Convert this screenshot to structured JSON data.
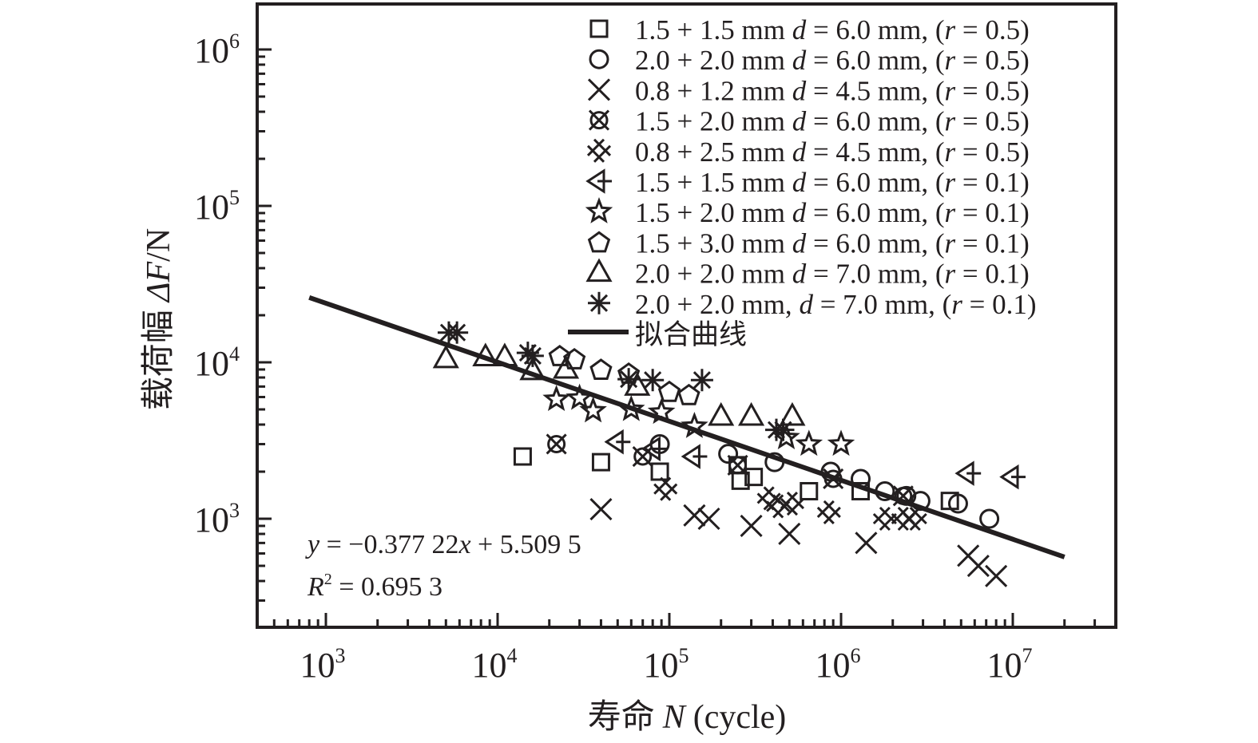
{
  "chart_data": {
    "type": "scatter",
    "title": "",
    "xlabel": "寿命 N (cycle)",
    "xlabel_parts": {
      "cn": "寿命",
      "var": "N",
      "unit": "(cycle)"
    },
    "ylabel": "载荷幅 ΔF/N",
    "ylabel_parts": {
      "cn": "载荷幅",
      "var": "ΔF",
      "unit": "/N"
    },
    "xscale": "log",
    "yscale": "log",
    "xlim": [
      400,
      40000000
    ],
    "ylim": [
      200,
      2000000
    ],
    "x_ticks": [
      {
        "base": "10",
        "exp": "3",
        "value": 1000
      },
      {
        "base": "10",
        "exp": "4",
        "value": 10000
      },
      {
        "base": "10",
        "exp": "5",
        "value": 100000
      },
      {
        "base": "10",
        "exp": "6",
        "value": 1000000
      },
      {
        "base": "10",
        "exp": "7",
        "value": 10000000
      }
    ],
    "y_ticks": [
      {
        "base": "10",
        "exp": "3",
        "value": 1000
      },
      {
        "base": "10",
        "exp": "4",
        "value": 10000
      },
      {
        "base": "10",
        "exp": "5",
        "value": 100000
      },
      {
        "base": "10",
        "exp": "6",
        "value": 1000000
      }
    ],
    "grid": false,
    "legend_position": "top-right",
    "series": [
      {
        "name": "1.5 + 1.5 mm d = 6.0 mm, (r = 0.5)",
        "label": {
          "a": "1.5 + 1.5 mm ",
          "d": "d",
          "b": " = 6.0 mm, (",
          "r": "r",
          "c": " = 0.5)"
        },
        "marker": "square",
        "points": [
          [
            14000,
            2500
          ],
          [
            40000,
            2300
          ],
          [
            88000,
            2000
          ],
          [
            260000,
            1750
          ],
          [
            310000,
            1850
          ],
          [
            250000,
            2200
          ],
          [
            650000,
            1500
          ],
          [
            1300000,
            1500
          ],
          [
            4300000,
            1300
          ]
        ]
      },
      {
        "name": "2.0 + 2.0 mm d = 6.0 mm, (r = 0.5)",
        "label": {
          "a": "2.0 + 2.0 mm ",
          "d": "d",
          "b": " = 6.0 mm, (",
          "r": "r",
          "c": " = 0.5)"
        },
        "marker": "circle",
        "points": [
          [
            88000,
            3000
          ],
          [
            220000,
            2600
          ],
          [
            410000,
            2300
          ],
          [
            870000,
            2000
          ],
          [
            1300000,
            1800
          ],
          [
            1800000,
            1500
          ],
          [
            2400000,
            1400
          ],
          [
            2900000,
            1300
          ],
          [
            4800000,
            1250
          ],
          [
            7300000,
            1000
          ]
        ]
      },
      {
        "name": "0.8 + 1.2 mm d = 4.5 mm, (r = 0.5)",
        "label": {
          "a": "0.8 + 1.2 mm ",
          "d": "d",
          "b": " = 4.5 mm, (",
          "r": "r",
          "c": " = 0.5)"
        },
        "marker": "x",
        "points": [
          [
            40000,
            1150
          ],
          [
            140000,
            1050
          ],
          [
            170000,
            1000
          ],
          [
            300000,
            900
          ],
          [
            500000,
            800
          ],
          [
            1400000,
            700
          ],
          [
            5500000,
            580
          ],
          [
            6300000,
            500
          ],
          [
            8000000,
            430
          ]
        ]
      },
      {
        "name": "1.5 + 2.0 mm d = 6.0 mm, (r = 0.5)",
        "label": {
          "a": "1.5 + 2.0 mm ",
          "d": "d",
          "b": " = 6.0 mm, (",
          "r": "r",
          "c": " = 0.5)"
        },
        "marker": "circle-x",
        "points": [
          [
            22000,
            3000
          ],
          [
            70000,
            2500
          ],
          [
            250000,
            2200
          ],
          [
            900000,
            1800
          ],
          [
            2300000,
            1400
          ]
        ]
      },
      {
        "name": "0.8 + 2.5 mm d = 4.5 mm, (r = 0.5)",
        "label": {
          "a": "0.8 + 2.5 mm ",
          "d": "d",
          "b": " = 4.5 mm, (",
          "r": "r",
          "c": " = 0.5)"
        },
        "marker": "double-x",
        "points": [
          [
            95000,
            1550
          ],
          [
            380000,
            1350
          ],
          [
            430000,
            1200
          ],
          [
            520000,
            1250
          ],
          [
            850000,
            1100
          ],
          [
            1800000,
            1000
          ],
          [
            2300000,
            1000
          ],
          [
            2700000,
            1000
          ]
        ]
      },
      {
        "name": "1.5 + 1.5 mm d = 6.0 mm, (r = 0.1)",
        "label": {
          "a": "1.5 + 1.5 mm ",
          "d": "d",
          "b": " = 6.0 mm, (",
          "r": "r",
          "c": " = 0.1)"
        },
        "marker": "tri-left",
        "points": [
          [
            50000,
            3100
          ],
          [
            82000,
            2800
          ],
          [
            140000,
            2500
          ],
          [
            5500000,
            1950
          ],
          [
            10000000,
            1850
          ]
        ]
      },
      {
        "name": "1.5 + 2.0 mm d = 6.0 mm, (r = 0.1)",
        "label": {
          "a": "1.5 + 2.0 mm ",
          "d": "d",
          "b": " = 6.0 mm, (",
          "r": "r",
          "c": " = 0.1)"
        },
        "marker": "star",
        "points": [
          [
            22000,
            5800
          ],
          [
            30000,
            5900
          ],
          [
            36000,
            4900
          ],
          [
            60000,
            5000
          ],
          [
            90000,
            4800
          ],
          [
            140000,
            3900
          ],
          [
            480000,
            3300
          ],
          [
            650000,
            3000
          ],
          [
            1000000,
            3000
          ]
        ]
      },
      {
        "name": "1.5 + 3.0 mm d = 6.0 mm, (r = 0.1)",
        "label": {
          "a": "1.5 + 3.0 mm ",
          "d": "d",
          "b": " = 6.0 mm, (",
          "r": "r",
          "c": " = 0.1)"
        },
        "marker": "pentagon",
        "points": [
          [
            23000,
            11000
          ],
          [
            28000,
            10500
          ],
          [
            40000,
            9000
          ],
          [
            58000,
            8500
          ],
          [
            100000,
            6500
          ],
          [
            130000,
            6200
          ]
        ]
      },
      {
        "name": "2.0 + 2.0 mm d = 7.0 mm, (r = 0.1)",
        "label": {
          "a": "2.0 + 2.0 mm ",
          "d": "d",
          "b": " = 7.0 mm, (",
          "r": "r",
          "c": " = 0.1)"
        },
        "marker": "triangle",
        "points": [
          [
            5000,
            10500
          ],
          [
            8500,
            10800
          ],
          [
            11000,
            10800
          ],
          [
            16000,
            8800
          ],
          [
            25000,
            9000
          ],
          [
            65000,
            7000
          ],
          [
            200000,
            4500
          ],
          [
            300000,
            4500
          ],
          [
            520000,
            4500
          ]
        ]
      },
      {
        "name": "2.0 + 2.0 mm, d = 7.0 mm, (r = 0.1)",
        "label": {
          "a": "2.0 + 2.0 mm, ",
          "d": "d",
          "b": " = 7.0 mm, (",
          "r": "r",
          "c": " = 0.1)"
        },
        "marker": "asterisk",
        "points": [
          [
            5200,
            15500
          ],
          [
            5800,
            15500
          ],
          [
            15000,
            11500
          ],
          [
            16000,
            11000
          ],
          [
            58000,
            7800
          ],
          [
            80000,
            7700
          ],
          [
            155000,
            7700
          ],
          [
            420000,
            3700
          ],
          [
            460000,
            3700
          ]
        ]
      }
    ],
    "fit_line": {
      "name": "拟合曲线",
      "equation": "y = −0.377 22x + 5.509 5",
      "equation_parts": {
        "y": "y",
        "mid": " = −0.377 22",
        "x": "x",
        "end": " + 5.509 5"
      },
      "r2": "R² = 0.695 3",
      "r2_parts": {
        "R": "R",
        "sup": "2",
        "rest": " = 0.695 3"
      },
      "slope": -0.37722,
      "intercept": 5.5095,
      "r_squared": 0.6953,
      "x_range": [
        800,
        20000000
      ]
    }
  }
}
